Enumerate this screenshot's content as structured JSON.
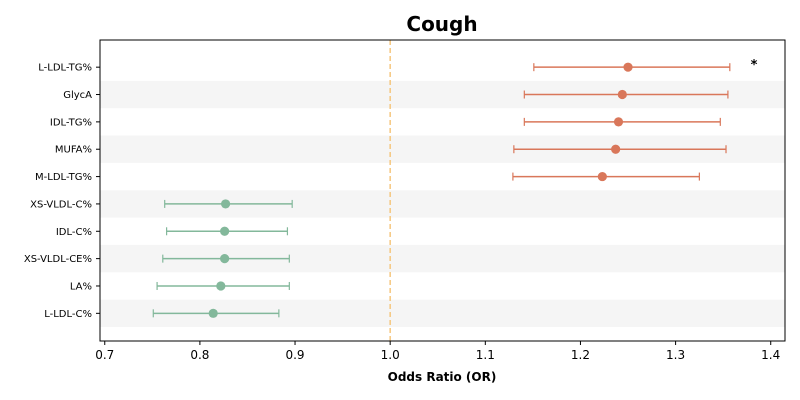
{
  "chart_data": {
    "type": "forest",
    "title": "Cough",
    "xlabel": "Odds Ratio (OR)",
    "xlim": [
      0.695,
      1.415
    ],
    "xticks": [
      0.7,
      0.8,
      0.9,
      1.0,
      1.1,
      1.2,
      1.3,
      1.4
    ],
    "xtick_labels": [
      "0.7",
      "0.8",
      "0.9",
      "1.0",
      "1.1",
      "1.2",
      "1.3",
      "1.4"
    ],
    "reference_line": 1.0,
    "reference_line_style": "dashed",
    "reference_color": "#f5c77e",
    "positive_color": "#d9775a",
    "negative_color": "#83b89b",
    "row_stripe_color": "#f5f5f5",
    "grid": false,
    "rows": [
      {
        "label": "L-LDL-TG%",
        "or": 1.25,
        "lower": 1.151,
        "upper": 1.357,
        "annotation": "*"
      },
      {
        "label": "GlycA",
        "or": 1.244,
        "lower": 1.141,
        "upper": 1.355,
        "annotation": ""
      },
      {
        "label": "IDL-TG%",
        "or": 1.24,
        "lower": 1.141,
        "upper": 1.347,
        "annotation": ""
      },
      {
        "label": "MUFA%",
        "or": 1.237,
        "lower": 1.13,
        "upper": 1.353,
        "annotation": ""
      },
      {
        "label": "M-LDL-TG%",
        "or": 1.223,
        "lower": 1.129,
        "upper": 1.325,
        "annotation": ""
      },
      {
        "label": "XS-VLDL-C%",
        "or": 0.827,
        "lower": 0.763,
        "upper": 0.897,
        "annotation": ""
      },
      {
        "label": "IDL-C%",
        "or": 0.826,
        "lower": 0.765,
        "upper": 0.892,
        "annotation": ""
      },
      {
        "label": "XS-VLDL-CE%",
        "or": 0.826,
        "lower": 0.761,
        "upper": 0.894,
        "annotation": ""
      },
      {
        "label": "LA%",
        "or": 0.822,
        "lower": 0.755,
        "upper": 0.894,
        "annotation": ""
      },
      {
        "label": "L-LDL-C%",
        "or": 0.814,
        "lower": 0.751,
        "upper": 0.883,
        "annotation": ""
      }
    ]
  }
}
